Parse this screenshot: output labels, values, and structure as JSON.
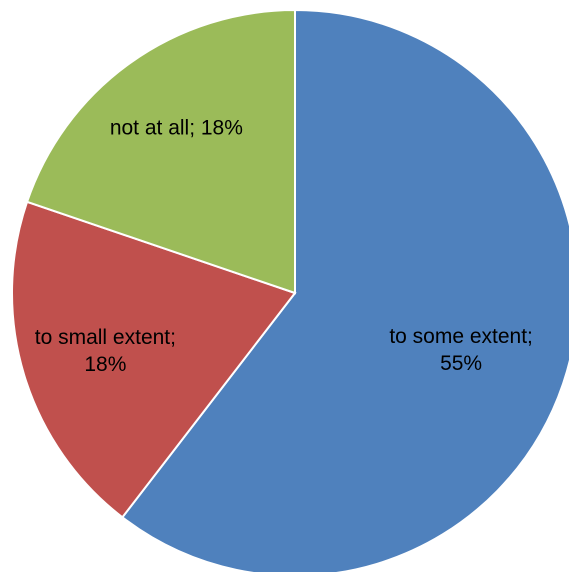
{
  "chart_data": {
    "type": "pie",
    "title": "",
    "start_angle_deg": 0,
    "direction": "clockwise",
    "slices": [
      {
        "label": "to some extent",
        "value": 55,
        "display_lines": [
          "to some extent;",
          "55%"
        ],
        "color": "#4F81BD"
      },
      {
        "label": "to small extent",
        "value": 18,
        "display_lines": [
          "to small extent;",
          "18%"
        ],
        "color": "#C0504D"
      },
      {
        "label": "not at all",
        "value": 18,
        "display_lines": [
          "not at all; 18%"
        ],
        "color": "#9BBB59"
      }
    ]
  }
}
